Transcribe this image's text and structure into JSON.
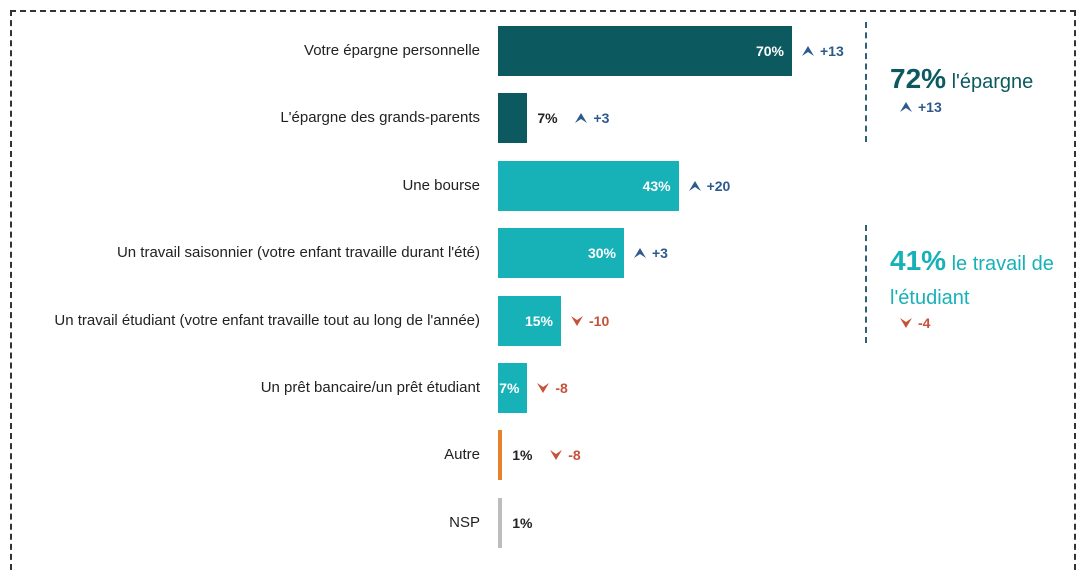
{
  "chart_data": {
    "type": "bar",
    "orientation": "horizontal",
    "categories": [
      "Votre épargne personnelle",
      "L'épargne des grands-parents",
      "Une bourse",
      "Un travail saisonnier (votre enfant travaille durant l'été)",
      "Un travail étudiant (votre enfant travaille tout au long de l'année)",
      "Un prêt bancaire/un prêt étudiant",
      "Autre",
      "NSP"
    ],
    "values": [
      70,
      7,
      43,
      30,
      15,
      7,
      1,
      1
    ],
    "value_labels": [
      "70%",
      "7%",
      "43%",
      "30%",
      "15%",
      "7%",
      "1%",
      "1%"
    ],
    "colors": [
      "#0c5a60",
      "#0c5a60",
      "#17b1b8",
      "#17b1b8",
      "#17b1b8",
      "#17b1b8",
      "#e8822a",
      "#bdbdbd"
    ],
    "changes": [
      13,
      3,
      20,
      3,
      -10,
      -8,
      -8,
      null
    ],
    "change_labels": [
      "+13",
      "+3",
      "+20",
      "+3",
      "-10",
      "-8",
      "-8",
      null
    ],
    "annotations": [
      {
        "value_text": "72%",
        "text": "l'épargne",
        "change": "+13",
        "color": "#0c5a60"
      },
      {
        "value_text": "41%",
        "text": "le travail de l'étudiant",
        "change": "-4",
        "color": "#17b1b8"
      }
    ]
  }
}
